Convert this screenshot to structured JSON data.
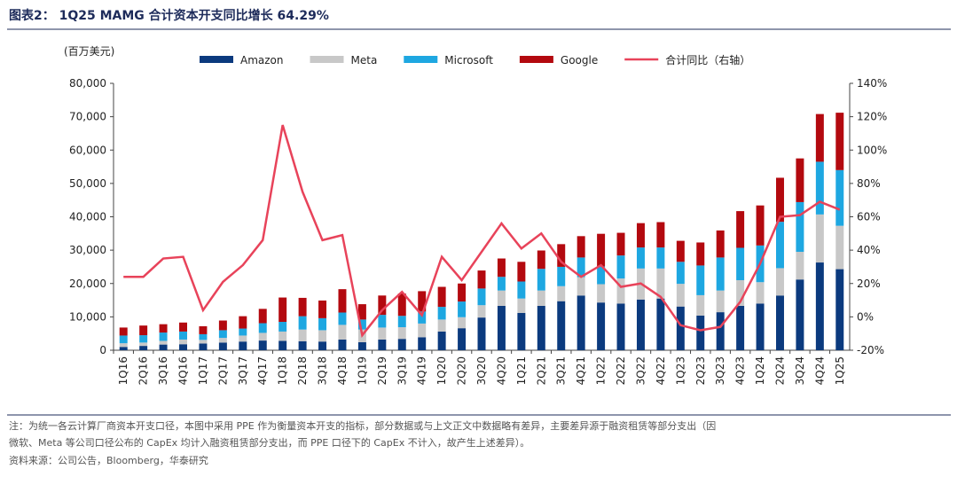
{
  "header": {
    "title": "图表2： 1Q25 MAMG 合计资本开支同比增长 64.29%"
  },
  "chart_data": {
    "type": "bar",
    "unit_label": "(百万美元)",
    "categories": [
      "1Q16",
      "2Q16",
      "3Q16",
      "4Q16",
      "1Q17",
      "2Q17",
      "3Q17",
      "4Q17",
      "1Q18",
      "2Q18",
      "3Q18",
      "4Q18",
      "1Q19",
      "2Q19",
      "3Q19",
      "4Q19",
      "1Q20",
      "2Q20",
      "3Q20",
      "4Q20",
      "1Q21",
      "2Q21",
      "3Q21",
      "4Q21",
      "1Q22",
      "2Q22",
      "3Q22",
      "4Q22",
      "1Q23",
      "2Q23",
      "3Q23",
      "4Q23",
      "1Q24",
      "2Q24",
      "3Q24",
      "4Q24",
      "1Q25"
    ],
    "series": [
      {
        "name": "Amazon",
        "type": "bar",
        "color": "#0b3a7e",
        "values": [
          1000,
          1300,
          1700,
          1800,
          2000,
          2300,
          2600,
          2900,
          2800,
          2700,
          2600,
          3200,
          2400,
          3200,
          3400,
          3900,
          5600,
          6600,
          9800,
          13300,
          11200,
          13300,
          14700,
          16400,
          14300,
          14000,
          15200,
          15500,
          13100,
          10400,
          11400,
          13300,
          14000,
          16400,
          21200,
          26300,
          24300
        ]
      },
      {
        "name": "Meta",
        "type": "bar",
        "color": "#c8c8c8",
        "values": [
          1100,
          1000,
          1100,
          1400,
          1100,
          1400,
          1800,
          2300,
          2800,
          3500,
          3400,
          4400,
          3800,
          3600,
          3500,
          4100,
          3600,
          3300,
          3700,
          4600,
          4300,
          4600,
          4500,
          5500,
          5500,
          7500,
          9300,
          9000,
          6800,
          6100,
          6500,
          7700,
          6400,
          8200,
          8300,
          14400,
          13000
        ]
      },
      {
        "name": "Microsoft",
        "type": "bar",
        "color": "#1ea7e1",
        "values": [
          2300,
          2200,
          2500,
          2400,
          1700,
          2300,
          2100,
          2900,
          2900,
          4000,
          3600,
          3700,
          3000,
          3800,
          3400,
          3600,
          3800,
          4700,
          5000,
          4100,
          5100,
          6500,
          5800,
          5900,
          5300,
          6900,
          6300,
          6300,
          6600,
          8900,
          9900,
          9700,
          11000,
          13900,
          14900,
          15800,
          16700
        ]
      },
      {
        "name": "Google",
        "type": "bar",
        "color": "#b3090f",
        "values": [
          2400,
          2900,
          2500,
          2700,
          2400,
          2900,
          3700,
          4300,
          7300,
          5500,
          5300,
          7000,
          4600,
          5800,
          6700,
          6100,
          6000,
          5400,
          5400,
          5500,
          5900,
          5500,
          6800,
          6400,
          9800,
          6800,
          7300,
          7600,
          6300,
          6900,
          8100,
          11000,
          12000,
          13200,
          13100,
          14300,
          17200
        ]
      },
      {
        "name": "合计同比（右轴）",
        "type": "line",
        "axis": "y2",
        "color": "#e8435a",
        "values": [
          24,
          24,
          35,
          36,
          4,
          21,
          31,
          46,
          115,
          75,
          46,
          49,
          -11,
          4,
          15,
          1,
          36,
          22,
          39,
          56,
          41,
          50,
          33,
          24,
          31,
          18,
          20,
          12,
          -5,
          -8,
          -6,
          9,
          32,
          60,
          61,
          69,
          64.29
        ]
      }
    ],
    "ylim": [
      0,
      80000
    ],
    "yticks": [
      0,
      {
        "value": 10000,
        "label": "10,000"
      },
      {
        "value": 20000,
        "label": "20,000"
      },
      {
        "value": 30000,
        "label": "30,000"
      },
      {
        "value": 40000,
        "label": "40,000"
      },
      {
        "value": 50000,
        "label": "50,000"
      },
      {
        "value": 60000,
        "label": "60,000"
      },
      {
        "value": 70000,
        "label": "70,000"
      },
      {
        "value": 80000,
        "label": "80,000"
      }
    ],
    "y2lim": [
      -20,
      140
    ],
    "y2ticks": [
      {
        "value": -20,
        "label": "-20%"
      },
      {
        "value": 0,
        "label": "0%"
      },
      {
        "value": 20,
        "label": "20%"
      },
      {
        "value": 40,
        "label": "40%"
      },
      {
        "value": 60,
        "label": "60%"
      },
      {
        "value": 80,
        "label": "80%"
      },
      {
        "value": 100,
        "label": "100%"
      },
      {
        "value": 120,
        "label": "120%"
      },
      {
        "value": 140,
        "label": "140%"
      }
    ],
    "stacked": true
  },
  "notes": [
    "注：为统一各云计算厂商资本开支口径，本图中采用 PPE 作为衡量资本开支的指标，部分数据或与上文正文中数据略有差异，主要差异源于融资租赁等部分支出（因",
    "微软、Meta 等公司口径公布的 CapEx 均计入融资租赁部分支出，而 PPE 口径下的 CapEx 不计入，故产生上述差异）。",
    "资料来源：公司公告，Bloomberg，华泰研究"
  ]
}
